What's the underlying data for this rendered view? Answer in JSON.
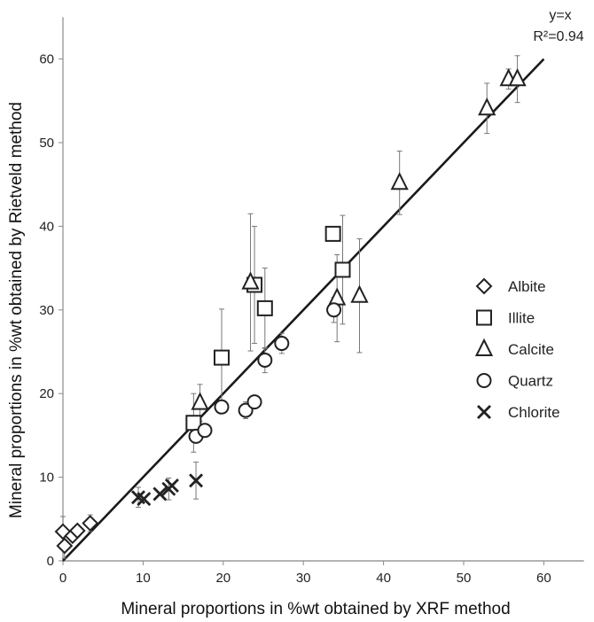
{
  "chart_data": {
    "type": "scatter",
    "title": "",
    "xlabel": "Mineral proportions in %wt obtained by XRF method",
    "ylabel": "Mineral proportions in %wt obtained by Rietveld method",
    "xlim": [
      0,
      65
    ],
    "ylim": [
      0,
      65
    ],
    "x_ticks": [
      0,
      10,
      20,
      30,
      40,
      50,
      60
    ],
    "y_ticks": [
      0,
      10,
      20,
      30,
      40,
      50,
      60
    ],
    "grid": false,
    "legend_position": "right",
    "fit_line": {
      "label": "y=x",
      "r2_label": "R²=0.94",
      "from": [
        0,
        0
      ],
      "to": [
        60,
        60
      ]
    },
    "series": [
      {
        "name": "Albite",
        "marker": "diamond",
        "points": [
          {
            "x": 0.0,
            "y": 3.5,
            "err": 1.8
          },
          {
            "x": 0.2,
            "y": 1.8,
            "err": 1.5
          },
          {
            "x": 1.2,
            "y": 3.0,
            "err": 0
          },
          {
            "x": 1.8,
            "y": 3.6,
            "err": 0
          },
          {
            "x": 3.4,
            "y": 4.5,
            "err": 1.0
          }
        ]
      },
      {
        "name": "Illite",
        "marker": "square",
        "points": [
          {
            "x": 16.3,
            "y": 16.5,
            "err": 3.5
          },
          {
            "x": 19.8,
            "y": 24.3,
            "err": 5.8
          },
          {
            "x": 23.9,
            "y": 33.0,
            "err": 7.0
          },
          {
            "x": 25.2,
            "y": 30.2,
            "err": 4.8
          },
          {
            "x": 33.7,
            "y": 39.1,
            "err": 0
          },
          {
            "x": 34.9,
            "y": 34.8,
            "err": 6.5
          }
        ]
      },
      {
        "name": "Calcite",
        "marker": "triangle",
        "points": [
          {
            "x": 17.1,
            "y": 18.9,
            "err": 2.2
          },
          {
            "x": 23.4,
            "y": 33.3,
            "err": 8.2
          },
          {
            "x": 34.2,
            "y": 31.4,
            "err": 5.2
          },
          {
            "x": 37.0,
            "y": 31.7,
            "err": 6.8
          },
          {
            "x": 42.0,
            "y": 45.2,
            "err": 3.8
          },
          {
            "x": 52.9,
            "y": 54.1,
            "err": 3.0
          },
          {
            "x": 55.6,
            "y": 57.6,
            "err": 1.2
          },
          {
            "x": 56.7,
            "y": 57.6,
            "err": 2.8
          }
        ]
      },
      {
        "name": "Quartz",
        "marker": "circle",
        "points": [
          {
            "x": 16.6,
            "y": 14.9,
            "err": 0
          },
          {
            "x": 17.7,
            "y": 15.6,
            "err": 0
          },
          {
            "x": 19.8,
            "y": 18.4,
            "err": 0
          },
          {
            "x": 22.8,
            "y": 18.0,
            "err": 1.0
          },
          {
            "x": 23.9,
            "y": 19.0,
            "err": 0
          },
          {
            "x": 25.2,
            "y": 24.0,
            "err": 1.5
          },
          {
            "x": 27.3,
            "y": 26.0,
            "err": 1.2
          },
          {
            "x": 33.8,
            "y": 30.0,
            "err": 1.5
          }
        ]
      },
      {
        "name": "Chlorite",
        "marker": "x",
        "points": [
          {
            "x": 9.4,
            "y": 7.6,
            "err": 1.2
          },
          {
            "x": 10.1,
            "y": 7.4,
            "err": 0
          },
          {
            "x": 12.1,
            "y": 8.0,
            "err": 0
          },
          {
            "x": 13.2,
            "y": 8.6,
            "err": 1.3
          },
          {
            "x": 13.6,
            "y": 9.0,
            "err": 0
          },
          {
            "x": 16.6,
            "y": 9.6,
            "err": 2.2
          }
        ]
      }
    ]
  }
}
